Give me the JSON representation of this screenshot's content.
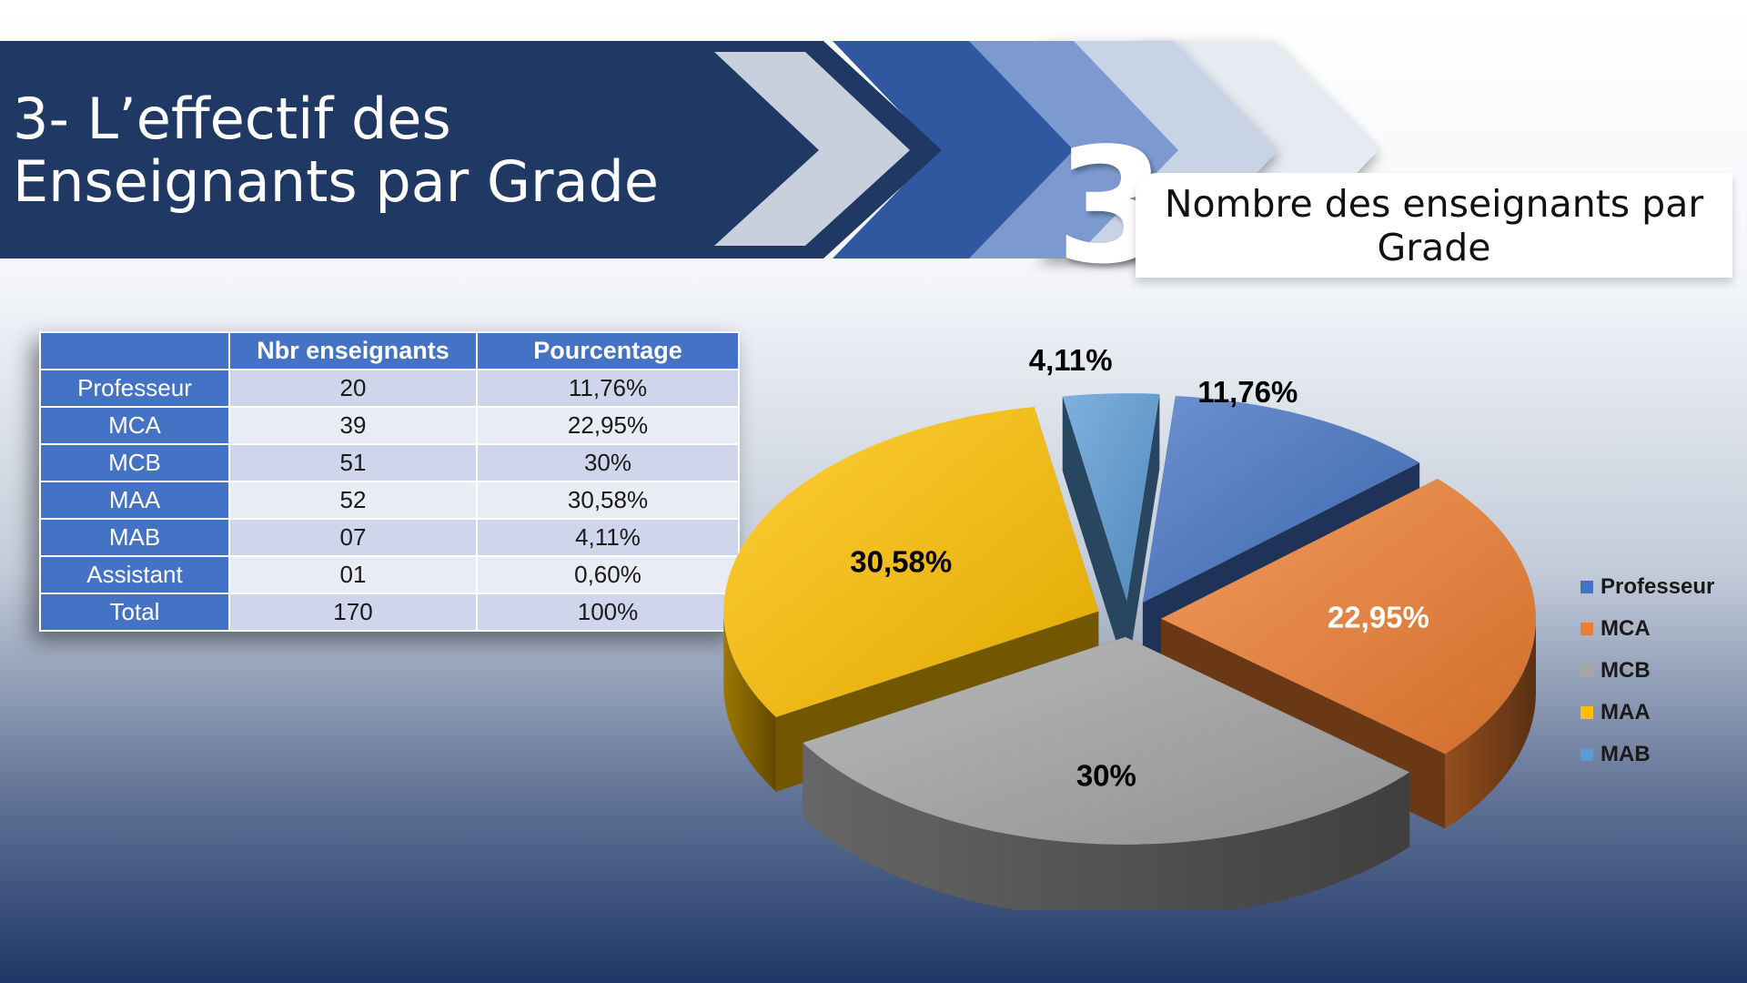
{
  "slide": {
    "title": "3- L’effectif des Enseignants par Grade",
    "number": "3",
    "subtitle": "Nombre des enseignants par Grade"
  },
  "table": {
    "headers": [
      "",
      "Nbr enseignants",
      "Pourcentage"
    ],
    "rows": [
      {
        "grade": "Professeur",
        "count": "20",
        "percent": "11,76%"
      },
      {
        "grade": "MCA",
        "count": "39",
        "percent": "22,95%"
      },
      {
        "grade": "MCB",
        "count": "51",
        "percent": "30%"
      },
      {
        "grade": "MAA",
        "count": "52",
        "percent": "30,58%"
      },
      {
        "grade": "MAB",
        "count": "07",
        "percent": "4,11%"
      },
      {
        "grade": "Assistant",
        "count": "01",
        "percent": "0,60%"
      },
      {
        "grade": "Total",
        "count": "170",
        "percent": "100%"
      }
    ]
  },
  "chart_data": {
    "type": "pie",
    "style": "3d-exploded",
    "categories": [
      "Professeur",
      "MCA",
      "MCB",
      "MAA",
      "MAB"
    ],
    "values": [
      11.76,
      22.95,
      30,
      30.58,
      4.11
    ],
    "data_labels": [
      "11,76%",
      "22,95%",
      "30%",
      "30,58%",
      "4,11%"
    ],
    "colors": [
      "#4472c4",
      "#ed7d31",
      "#a5a5a5",
      "#ffc000",
      "#5b9bd5"
    ],
    "label_colors": [
      "#000000",
      "#ffffff",
      "#000000",
      "#000000",
      "#000000"
    ],
    "legend": "right"
  }
}
